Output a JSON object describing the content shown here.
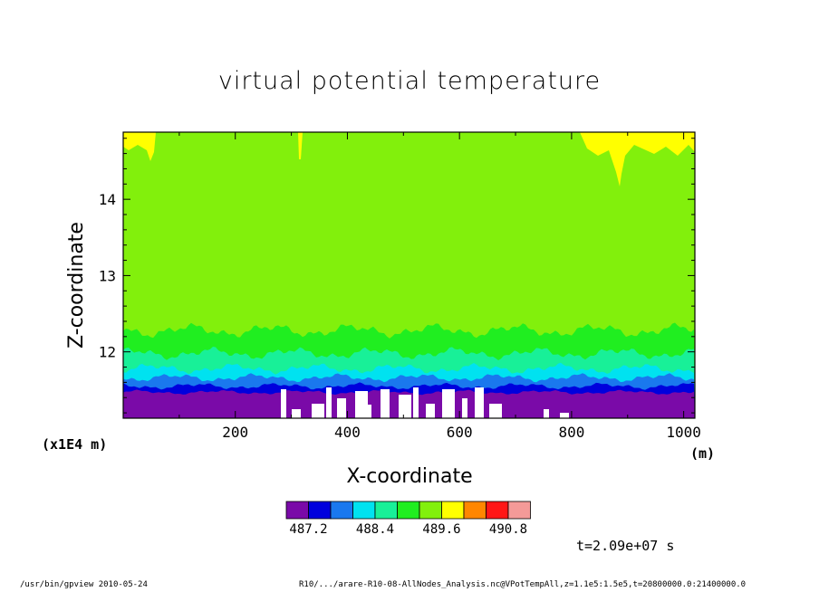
{
  "chart_data": {
    "type": "heatmap",
    "title": "virtual potential temperature",
    "xlabel": "X-coordinate",
    "ylabel": "Z-coordinate",
    "x_unit": "(m)",
    "y_scale_note": "(x1E4 m)",
    "x_ticks": [
      200,
      400,
      600,
      800,
      1000
    ],
    "y_ticks": [
      12,
      13,
      14
    ],
    "xlim": [
      0,
      1020
    ],
    "ylim": [
      11.13,
      14.88
    ],
    "colorbar": {
      "levels": [
        486.8,
        487.2,
        487.6,
        488.0,
        488.4,
        488.8,
        489.2,
        489.6,
        490.0,
        490.4,
        490.8,
        491.2
      ],
      "labels": [
        "487.2",
        "488.4",
        "489.6",
        "490.8"
      ],
      "colors": [
        "#7a0aa8",
        "#0000dd",
        "#1a78ee",
        "#00e2f0",
        "#18f098",
        "#20ee20",
        "#82f00c",
        "#ffff00",
        "#ff8600",
        "#ff1616",
        "#f49a98"
      ]
    },
    "bands": [
      {
        "color": "#7a0aa8",
        "z_top": 11.47
      },
      {
        "color": "#0000dd",
        "z_top": 11.55
      },
      {
        "color": "#1a78ee",
        "z_top": 11.66
      },
      {
        "color": "#00e2f0",
        "z_top": 11.78
      },
      {
        "color": "#18f098",
        "z_top": 11.98
      },
      {
        "color": "#20ee20",
        "z_top": 12.28
      },
      {
        "color": "#82f00c",
        "z_top": 14.88
      }
    ],
    "time": "t=2.09e+07 s"
  },
  "footer": {
    "left": "/usr/bin/gpview   2010-05-24",
    "right": "R10/.../arare-R10-08-AllNodes_Analysis.nc@VPotTempAll,z=1.1e5:1.5e5,t=20800000.0:21400000.0"
  }
}
